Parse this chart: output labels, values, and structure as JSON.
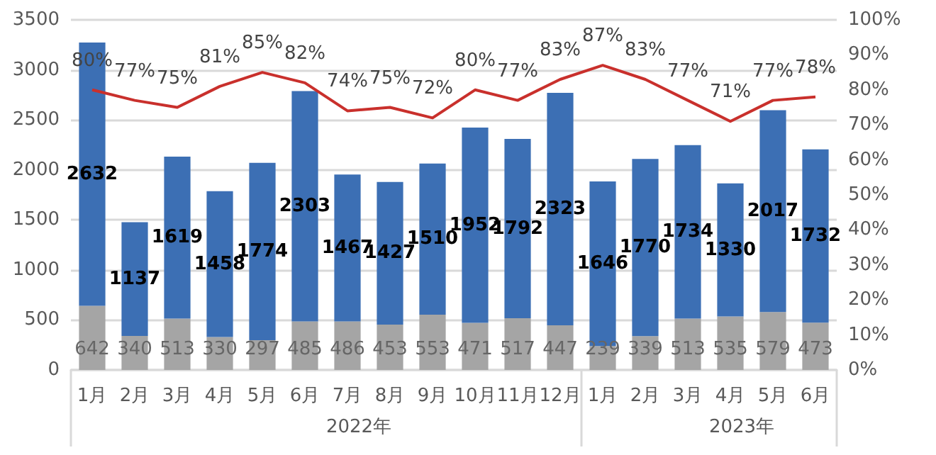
{
  "chart_data": {
    "type": "bar",
    "stacked": true,
    "categories": [
      "1月",
      "2月",
      "3月",
      "4月",
      "5月",
      "6月",
      "7月",
      "8月",
      "9月",
      "10月",
      "11月",
      "12月",
      "1月",
      "2月",
      "3月",
      "4月",
      "5月",
      "6月"
    ],
    "series": [
      {
        "color": "#a5a5a5",
        "values": [
          642,
          340,
          513,
          330,
          297,
          485,
          486,
          453,
          553,
          471,
          517,
          447,
          239,
          339,
          513,
          535,
          579,
          473
        ]
      },
      {
        "color": "#3c6fb4",
        "values": [
          2632,
          1137,
          1619,
          1458,
          1774,
          2303,
          1467,
          1427,
          1510,
          1952,
          1792,
          2323,
          1646,
          1770,
          1734,
          1330,
          2017,
          1732
        ]
      },
      {
        "type": "line",
        "axis": "y2",
        "color": "#c9302c",
        "value_labels": [
          "80%",
          "77%",
          "75%",
          "81%",
          "85%",
          "82%",
          "74%",
          "75%",
          "72%",
          "80%",
          "77%",
          "83%",
          "87%",
          "83%",
          "77%",
          "71%",
          "77%",
          "78%"
        ],
        "values": [
          80,
          77,
          75,
          81,
          85,
          82,
          74,
          75,
          72,
          80,
          77,
          83,
          87,
          83,
          77,
          71,
          77,
          78
        ]
      }
    ],
    "data_labels": true,
    "ylim": [
      0,
      3500
    ],
    "yticks": [
      0,
      500,
      1000,
      1500,
      2000,
      2500,
      3000,
      3500
    ],
    "y2lim": [
      0,
      100
    ],
    "y2ticks": [
      {
        "value": 0,
        "label": "0%"
      },
      {
        "value": 10,
        "label": "10%"
      },
      {
        "value": 20,
        "label": "20%"
      },
      {
        "value": 30,
        "label": "30%"
      },
      {
        "value": 40,
        "label": "40%"
      },
      {
        "value": 50,
        "label": "50%"
      },
      {
        "value": 60,
        "label": "60%"
      },
      {
        "value": 70,
        "label": "70%"
      },
      {
        "value": 80,
        "label": "80%"
      },
      {
        "value": 90,
        "label": "90%"
      },
      {
        "value": 100,
        "label": "100%"
      }
    ],
    "grid": "y",
    "legend": false,
    "marker": "none",
    "line_style": "solid",
    "annotations": [
      "2022年",
      "2023年"
    ]
  }
}
